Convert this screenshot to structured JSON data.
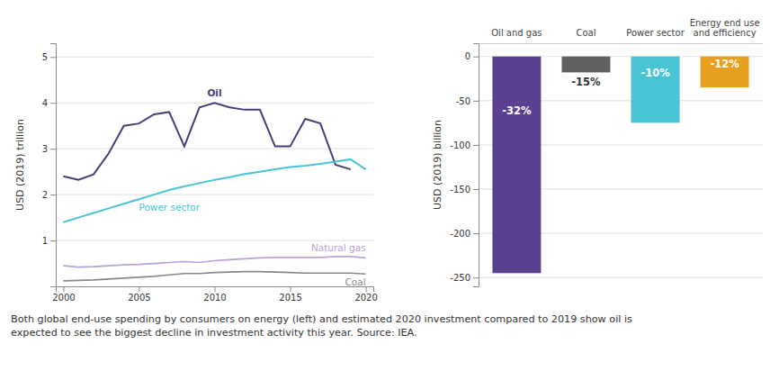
{
  "caption": "Both global end-use spending by consumers on energy (left) and estimated 2020 investment compared to 2019 show oil is\nexpected to see the biggest decline in investment activity this year. Source: IEA.",
  "chart_data": [
    {
      "type": "line",
      "x": [
        2000,
        2001,
        2002,
        2003,
        2004,
        2005,
        2006,
        2007,
        2008,
        2009,
        2010,
        2011,
        2012,
        2013,
        2014,
        2015,
        2016,
        2017,
        2018,
        2019,
        2020
      ],
      "series": [
        {
          "name": "Oil",
          "color": "#4d3a7a",
          "values": [
            2.4,
            2.32,
            2.44,
            2.9,
            3.5,
            3.55,
            3.75,
            3.8,
            3.05,
            3.9,
            4.0,
            3.9,
            3.85,
            3.85,
            3.05,
            3.05,
            3.65,
            3.55,
            2.65,
            2.55,
            null
          ]
        },
        {
          "name": "Power sector",
          "color": "#48c4d4",
          "values": [
            1.4,
            1.5,
            1.6,
            1.7,
            1.8,
            1.9,
            2.0,
            2.1,
            2.18,
            2.25,
            2.32,
            2.38,
            2.45,
            2.5,
            2.55,
            2.6,
            2.63,
            2.67,
            2.72,
            2.77,
            2.55
          ]
        },
        {
          "name": "Natural gas",
          "color": "#b8a0d8",
          "values": [
            0.45,
            0.42,
            0.43,
            0.45,
            0.47,
            0.48,
            0.5,
            0.52,
            0.54,
            0.52,
            0.56,
            0.58,
            0.6,
            0.62,
            0.63,
            0.63,
            0.63,
            0.63,
            0.65,
            0.65,
            0.62
          ]
        },
        {
          "name": "Coal",
          "color": "#888888",
          "values": [
            0.12,
            0.13,
            0.14,
            0.16,
            0.18,
            0.2,
            0.22,
            0.25,
            0.28,
            0.28,
            0.3,
            0.31,
            0.32,
            0.32,
            0.31,
            0.3,
            0.29,
            0.29,
            0.29,
            0.29,
            0.27
          ]
        }
      ],
      "ylabel": "USD (2019) trillion",
      "xlim": [
        1999.5,
        2020.5
      ],
      "ylim": [
        0,
        5.3
      ],
      "xticks": [
        2000,
        2005,
        2010,
        2015,
        2020
      ],
      "yticks": [
        1,
        2,
        3,
        4,
        5
      ],
      "grid": true
    },
    {
      "type": "bar",
      "categories": [
        "Oil and gas",
        "Coal",
        "Power sector",
        "Energy end use\nand efficiency"
      ],
      "values": [
        -245,
        -18,
        -75,
        -35
      ],
      "colors": [
        "#5b4090",
        "#606060",
        "#48c4d4",
        "#e8a020"
      ],
      "annotations": [
        "-32%",
        "-15%",
        "-10%",
        "-12%"
      ],
      "ylabel": "USD (2019) billion",
      "ylim": [
        -260,
        15
      ],
      "yticks": [
        0,
        -50,
        -100,
        -150,
        -200,
        -250
      ],
      "grid": true
    }
  ]
}
